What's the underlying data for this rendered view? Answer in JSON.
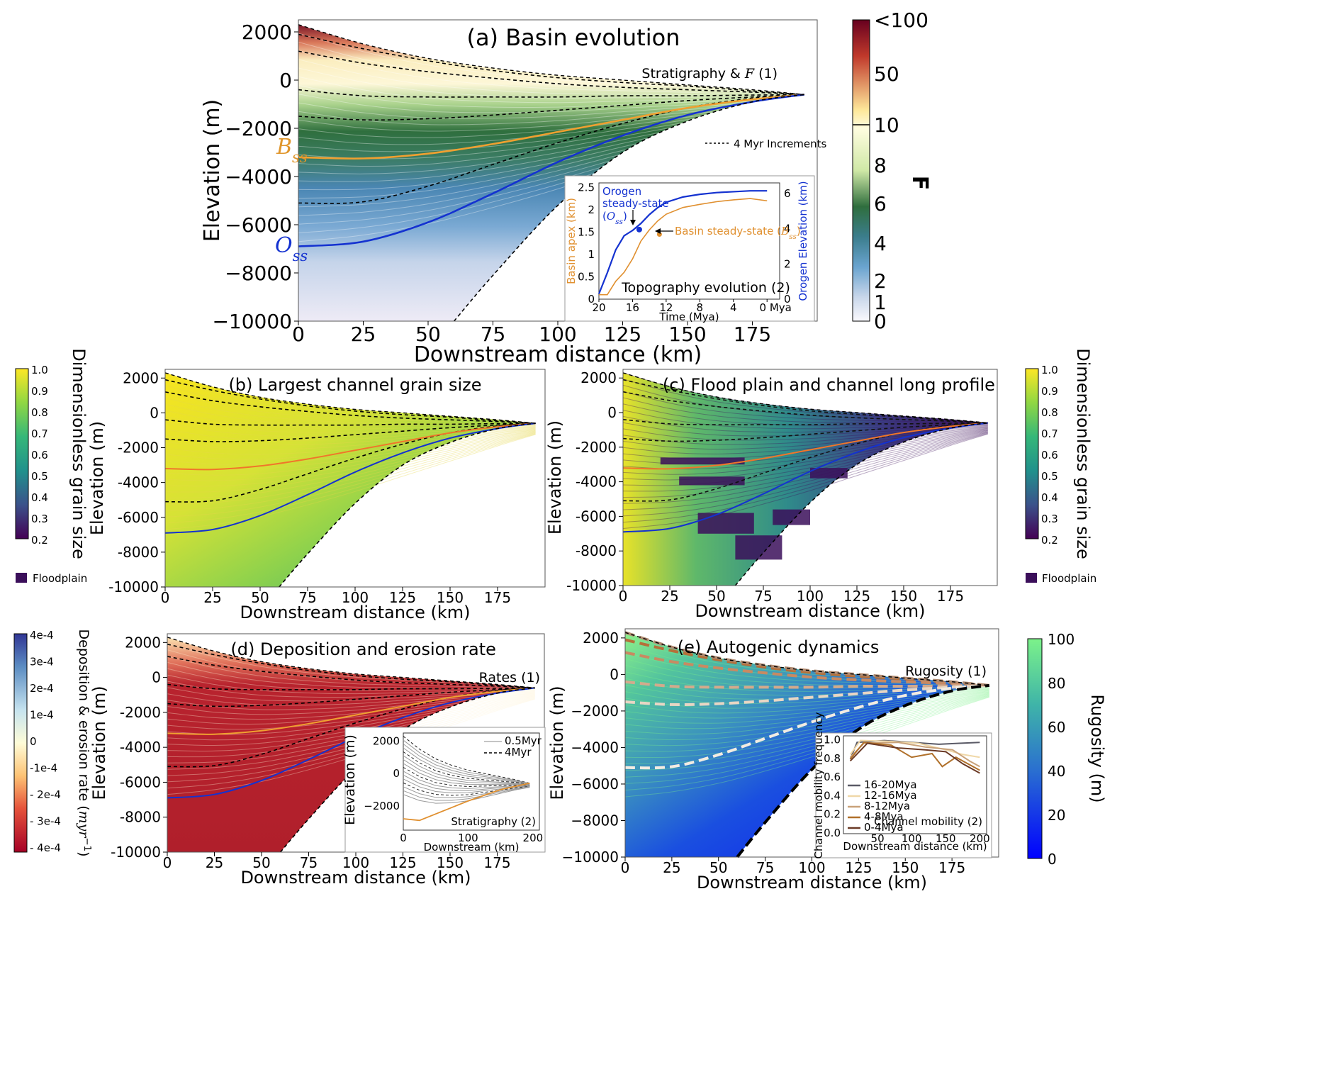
{
  "chart_data": [
    {
      "panel": "a",
      "type": "area",
      "title": "(a) Basin evolution",
      "xlabel": "Downstream distance (km)",
      "ylabel": "Elevation (m)",
      "xlim": [
        0,
        200
      ],
      "ylim": [
        -10000,
        2400
      ],
      "xticks": [
        "0",
        "25",
        "50",
        "75",
        "100",
        "125",
        "150",
        "175"
      ],
      "yticks": [
        "2000",
        "0",
        "−2000",
        "−4000",
        "−6000",
        "−8000",
        "−10000"
      ],
      "annotation": "Stratigraphy & F (1)",
      "annotation_parts": [
        "Stratigraphy & ",
        "F",
        " (1)"
      ],
      "legend": "4 Myr Increments",
      "colorbar": {
        "label": "F",
        "ticks": [
          "<100",
          "50",
          "10",
          "8",
          "6",
          "4",
          "2",
          "1",
          "0"
        ],
        "colors": [
          "#67001f",
          "#b2182b",
          "#e08a3c",
          "#fee89a",
          "#fffde0",
          "#cfe8a6",
          "#6fb26a",
          "#2f6e3e",
          "#3b7d8c",
          "#6aa4cf",
          "#c8d6ea",
          "#f3f1f8"
        ]
      },
      "series": [
        {
          "name": "B_ss",
          "label_parts": [
            "B",
            "ss"
          ],
          "color": "#f0a030",
          "x": [
            0,
            25,
            50,
            75,
            100,
            125,
            150,
            175,
            195
          ],
          "y": [
            -3200,
            -3250,
            -3050,
            -2650,
            -2150,
            -1650,
            -1150,
            -800,
            -600
          ]
        },
        {
          "name": "O_ss",
          "label_parts": [
            "O",
            "ss"
          ],
          "color": "#1432d0",
          "x": [
            0,
            25,
            50,
            75,
            100,
            125,
            150,
            175,
            195
          ],
          "y": [
            -6900,
            -6700,
            -5900,
            -4700,
            -3400,
            -2300,
            -1450,
            -900,
            -600
          ]
        },
        {
          "name": "basement",
          "color": "#000000",
          "x": [
            60,
            75,
            100,
            125,
            150,
            175,
            195
          ],
          "y": [
            -10000,
            -8100,
            -5200,
            -3000,
            -1700,
            -900,
            -600
          ]
        },
        {
          "name": "surface",
          "color": "#000000",
          "x": [
            0,
            25,
            50,
            75,
            100,
            125,
            150,
            175,
            195
          ],
          "y": [
            2300,
            1500,
            900,
            500,
            200,
            0,
            -200,
            -400,
            -600
          ]
        }
      ],
      "increments": [
        {
          "x": [
            0,
            25,
            50,
            75,
            100,
            125,
            150,
            175,
            195
          ],
          "y": [
            1900,
            1300,
            800,
            400,
            100,
            -100,
            -250,
            -450,
            -600
          ]
        },
        {
          "x": [
            0,
            25,
            50,
            75,
            100,
            125,
            150,
            175,
            195
          ],
          "y": [
            1200,
            700,
            350,
            80,
            -150,
            -300,
            -400,
            -500,
            -600
          ]
        },
        {
          "x": [
            0,
            25,
            50,
            75,
            100,
            125,
            150,
            175,
            195
          ],
          "y": [
            -400,
            -650,
            -700,
            -700,
            -700,
            -650,
            -650,
            -620,
            -600
          ]
        },
        {
          "x": [
            0,
            25,
            50,
            75,
            100,
            125,
            150,
            175,
            195
          ],
          "y": [
            -1500,
            -1650,
            -1600,
            -1450,
            -1250,
            -1050,
            -850,
            -700,
            -600
          ]
        },
        {
          "x": [
            0,
            25,
            50,
            75,
            100,
            125,
            150,
            175,
            195
          ],
          "y": [
            -5100,
            -5050,
            -4400,
            -3500,
            -2600,
            -1800,
            -1150,
            -750,
            -600
          ]
        }
      ],
      "inset": {
        "title": "Topography evolution (2)",
        "xlabel": "Time (Mya)",
        "ylabel_left": "Basin apex (km)",
        "ylabel_right": "Orogen Elevation (km)",
        "xticks": [
          "20",
          "16",
          "12",
          "8",
          "4",
          "0 Mya"
        ],
        "yticks_left": [
          "2.5",
          "2",
          "1.5",
          "1",
          "0.5",
          "0"
        ],
        "yticks_right": [
          "6",
          "4",
          "2",
          "0"
        ],
        "label_orogen": [
          "Orogen",
          "steady-state"
        ],
        "label_orogen_sym": [
          "(",
          "O",
          "ss",
          ")"
        ],
        "label_basin": [
          "Basin steady-state (",
          "B",
          "ss",
          ")"
        ],
        "series": [
          {
            "name": "Orogen elevation",
            "color": "#1432d0",
            "x": [
              20,
              19,
              18,
              17,
              16,
              15,
              14,
              13,
              12,
              10,
              8,
              6,
              4,
              2,
              0
            ],
            "y": [
              0.3,
              1.5,
              2.8,
              3.6,
              3.9,
              4.3,
              4.8,
              5.2,
              5.5,
              5.8,
              5.95,
              6.05,
              6.1,
              6.15,
              6.15
            ]
          },
          {
            "name": "Basin apex",
            "color": "#e09030",
            "x": [
              20,
              19,
              18,
              17,
              16,
              15,
              14,
              13,
              12,
              10,
              8,
              6,
              4,
              2,
              0
            ],
            "y": [
              0.1,
              0.1,
              0.4,
              0.6,
              0.9,
              1.3,
              1.55,
              1.75,
              1.9,
              2.05,
              2.12,
              2.18,
              2.22,
              2.25,
              2.2
            ]
          }
        ]
      }
    },
    {
      "panel": "b",
      "type": "area",
      "title": "(b) Largest channel grain size",
      "xlabel": "Downstream distance (km)",
      "ylabel": "Elevation (m)",
      "xticks": [
        "0",
        "25",
        "50",
        "75",
        "100",
        "125",
        "150",
        "175"
      ],
      "yticks": [
        "2000",
        "0",
        "-2000",
        "-4000",
        "-6000",
        "-8000",
        "-10000"
      ],
      "colorbar": {
        "label": "Dimensionless grain size",
        "ticks": [
          "1.0",
          "0.9",
          "0.8",
          "0.7",
          "0.6",
          "0.5",
          "0.4",
          "0.3",
          "0.2"
        ],
        "colors": [
          "#fde725",
          "#b5de2b",
          "#6ece58",
          "#35b779",
          "#1f9e89",
          "#26828e",
          "#31688e",
          "#3e4989",
          "#482878",
          "#440154"
        ],
        "floodplain_label": "Floodplain",
        "floodplain_color": "#3b0f5a"
      }
    },
    {
      "panel": "c",
      "type": "area",
      "title": "(c) Flood plain and channel long profile",
      "xlabel": "Downstream distance (km)",
      "ylabel": "Elevation (m)",
      "xticks": [
        "0",
        "25",
        "50",
        "75",
        "100",
        "125",
        "150",
        "175"
      ],
      "yticks": [
        "2000",
        "0",
        "-2000",
        "-4000",
        "-6000",
        "-8000",
        "-10000"
      ],
      "colorbar": {
        "label": "Dimensionless grain size",
        "ticks": [
          "1.0",
          "0.9",
          "0.8",
          "0.7",
          "0.6",
          "0.5",
          "0.4",
          "0.3",
          "0.2"
        ],
        "floodplain_label": "Floodplain",
        "floodplain_color": "#3b0f5a"
      }
    },
    {
      "panel": "d",
      "type": "area",
      "title": "(d) Deposition and erosion rate",
      "annotation": "Rates (1)",
      "xlabel": "Downstream distance (km)",
      "ylabel": "Elevation (m)",
      "xticks": [
        "0",
        "25",
        "50",
        "75",
        "100",
        "125",
        "150",
        "175"
      ],
      "yticks": [
        "2000",
        "0",
        "-2000",
        "-4000",
        "-6000",
        "-8000",
        "-10000"
      ],
      "colorbar": {
        "label_parts": [
          "Deposition & erosion rate (",
          "myr",
          "−1",
          ")"
        ],
        "ticks": [
          "4e-4",
          "3e-4",
          "2e-4",
          "1e-4",
          "0",
          "-1e-4",
          "- 2e-4",
          "- 3e-4",
          "- 4e-4"
        ],
        "colors": [
          "#313695",
          "#4575b4",
          "#74add1",
          "#abd9e9",
          "#fefefe",
          "#fee090",
          "#fdae61",
          "#f46d43",
          "#d73027",
          "#a50026"
        ]
      },
      "inset": {
        "xlabel": "Downstream (km)",
        "ylabel": "Elevation (m)",
        "xticks": [
          "0",
          "100",
          "200"
        ],
        "yticks": [
          "2000",
          "0",
          "−2000"
        ],
        "legend": [
          "0.5Myr",
          "4Myr"
        ],
        "annotation": "Stratigraphy (2)"
      }
    },
    {
      "panel": "e",
      "type": "area",
      "title": "(e) Autogenic dynamics",
      "annotation": "Rugosity (1)",
      "xlabel": "Downstream distance (km)",
      "ylabel": "Elevation (m)",
      "xticks": [
        "0",
        "25",
        "50",
        "75",
        "100",
        "125",
        "150",
        "175"
      ],
      "yticks": [
        "2000",
        "0",
        "−2000",
        "−4000",
        "−6000",
        "−8000",
        "−10000"
      ],
      "colorbar": {
        "label": "Rugosity (m)",
        "ticks": [
          "100",
          "80",
          "60",
          "40",
          "20",
          "0"
        ],
        "colors": [
          "#7cf28a",
          "#56d29a",
          "#3ba8b2",
          "#2e78c6",
          "#1f4fe0",
          "#0000ff"
        ]
      },
      "inset": {
        "xlabel": "Downstream distance (km)",
        "ylabel": "Channel mobility frequency",
        "xticks": [
          "50",
          "100",
          "150",
          "200"
        ],
        "yticks": [
          "1.0",
          "0.8",
          "0.6",
          "0.4",
          "0.2",
          "0.0"
        ],
        "annotation": "Channel mobility (2)",
        "series": [
          {
            "name": "16-20Mya",
            "color": "#5a5a66"
          },
          {
            "name": "12-16Mya",
            "color": "#f0d8a8"
          },
          {
            "name": "8-12Mya",
            "color": "#c9a27a"
          },
          {
            "name": "4-8Mya",
            "color": "#b0702a"
          },
          {
            "name": "0-4Mya",
            "color": "#6b3a26"
          }
        ]
      }
    }
  ]
}
